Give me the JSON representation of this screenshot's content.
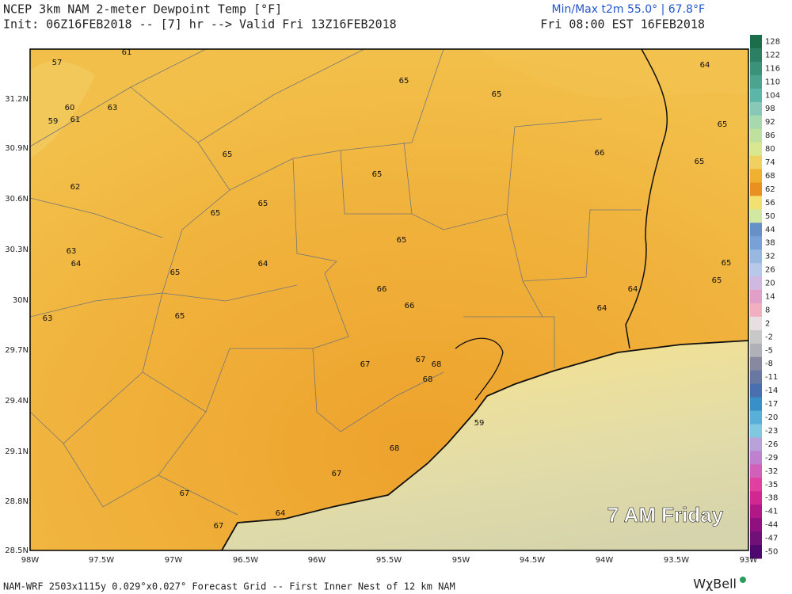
{
  "header": {
    "title": "NCEP 3km NAM 2-meter Dewpoint Temp [°F]",
    "init": "Init: 06Z16FEB2018 -- [7] hr --> Valid Fri 13Z16FEB2018",
    "minmax": "Min/Max t2m 55.0° | 67.8°F",
    "valid_local": "Fri 08:00 EST 16FEB2018"
  },
  "map": {
    "overlay": "7 AM Friday",
    "lat_labels": [
      "31.2N",
      "30.9N",
      "30.6N",
      "30.3N",
      "30N",
      "29.7N",
      "29.4N",
      "29.1N",
      "28.8N",
      "28.5N"
    ],
    "lon_labels": [
      "98W",
      "97.5W",
      "97W",
      "96.5W",
      "96W",
      "95.5W",
      "95W",
      "94.5W",
      "94W",
      "93.5W",
      "93W"
    ],
    "values": [
      57,
      61,
      60,
      63,
      59,
      61,
      65,
      65,
      64,
      65,
      65,
      66,
      65,
      65,
      62,
      65,
      65,
      65,
      63,
      64,
      64,
      65,
      65,
      65,
      66,
      64,
      66,
      64,
      63,
      65,
      67,
      67,
      68,
      68,
      59,
      68,
      67,
      67,
      64,
      67
    ]
  },
  "colorbar": {
    "labels": [
      128,
      122,
      116,
      110,
      104,
      98,
      92,
      86,
      80,
      74,
      68,
      62,
      56,
      50,
      44,
      38,
      32,
      26,
      20,
      14,
      8,
      2,
      -2,
      -5,
      -8,
      -11,
      -14,
      -17,
      -20,
      -23,
      -26,
      -29,
      -32,
      -35,
      -38,
      -41,
      -44,
      -47,
      -50
    ]
  },
  "footer": {
    "grid": "NAM-WRF 2503x1115y 0.029°x0.027° Forecast Grid -- First Inner Nest of 12 km NAM",
    "brand": "WχBell"
  }
}
